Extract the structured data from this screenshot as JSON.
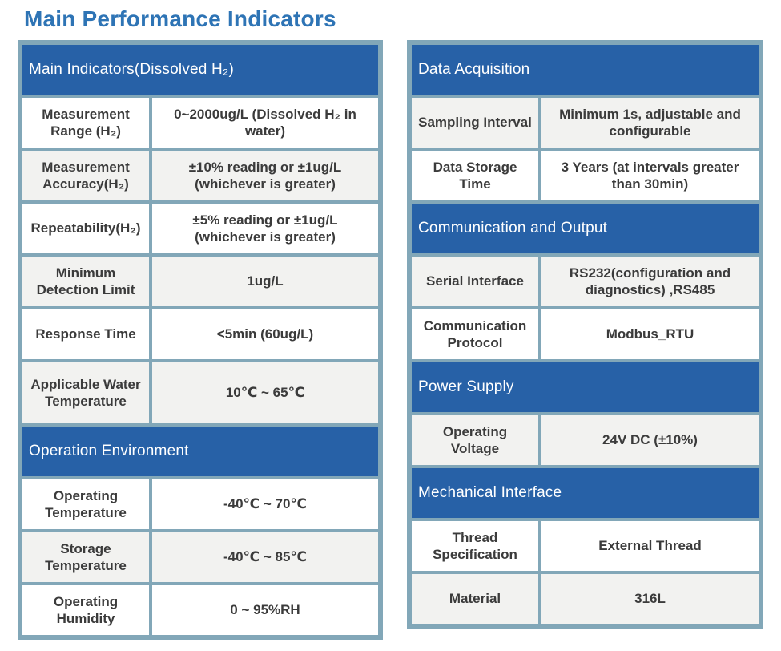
{
  "title": "Main Performance Indicators",
  "colors": {
    "title_text": "#2E74B5",
    "section_header_bg": "#2761A7",
    "section_header_text": "#FFFFFF",
    "table_frame": "#82A7B8",
    "shaded_row_bg": "#F2F2F0",
    "plain_row_bg": "#FFFFFF",
    "cell_text": "#3B3B3B"
  },
  "left_table": {
    "rows": [
      {
        "type": "section",
        "label": "Main Indicators(Dissolved H₂)"
      },
      {
        "type": "spec",
        "label": "Measurement Range (H₂)",
        "value": "0~2000ug/L (Dissolved H₂ in water)"
      },
      {
        "type": "spec",
        "label": "Measurement Accuracy(H₂)",
        "value": "±10% reading or ±1ug/L (whichever is greater)"
      },
      {
        "type": "spec",
        "label": "Repeatability(H₂)",
        "value": "±5% reading or ±1ug/L (whichever is greater)"
      },
      {
        "type": "spec",
        "label": "Minimum Detection Limit",
        "value": "1ug/L"
      },
      {
        "type": "spec",
        "label": "Response Time",
        "value": "<5min (60ug/L)"
      },
      {
        "type": "spec",
        "label": "Applicable Water Temperature",
        "value": "10℃ ~ 65℃"
      },
      {
        "type": "section",
        "label": "Operation Environment"
      },
      {
        "type": "spec",
        "label": "Operating Temperature",
        "value": "-40℃ ~ 70℃"
      },
      {
        "type": "spec",
        "label": "Storage Temperature",
        "value": "-40℃ ~ 85℃"
      },
      {
        "type": "spec",
        "label": "Operating Humidity",
        "value": "0 ~ 95%RH"
      }
    ]
  },
  "right_table": {
    "rows": [
      {
        "type": "section",
        "label": "Data Acquisition"
      },
      {
        "type": "spec",
        "label": "Sampling Interval",
        "value": "Minimum 1s, adjustable and configurable"
      },
      {
        "type": "spec",
        "label": "Data Storage Time",
        "value": "3 Years (at intervals greater than 30min)"
      },
      {
        "type": "section",
        "label": "Communication and Output"
      },
      {
        "type": "spec",
        "label": "Serial Interface",
        "value": "RS232(configuration and diagnostics) ,RS485"
      },
      {
        "type": "spec",
        "label": "Communication Protocol",
        "value": "Modbus_RTU"
      },
      {
        "type": "section",
        "label": "Power Supply"
      },
      {
        "type": "spec",
        "label": "Operating Voltage",
        "value": "24V DC (±10%)"
      },
      {
        "type": "section",
        "label": "Mechanical Interface"
      },
      {
        "type": "spec",
        "label": "Thread Specification",
        "value": "External Thread"
      },
      {
        "type": "spec",
        "label": "Material",
        "value": "316L"
      }
    ]
  }
}
